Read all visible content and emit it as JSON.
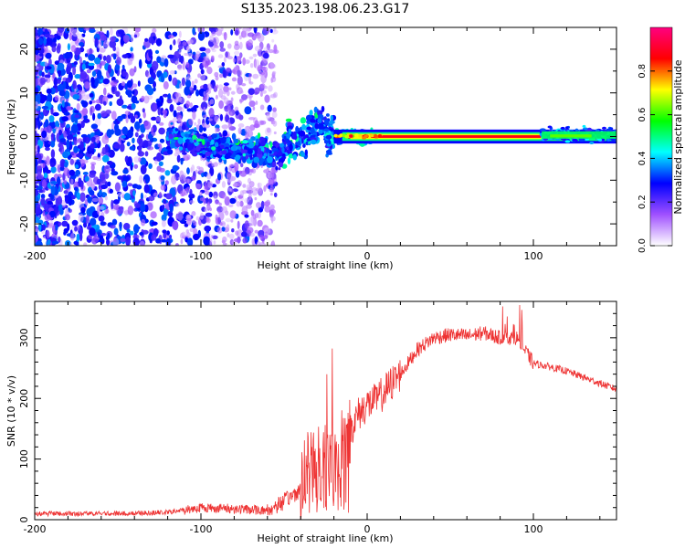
{
  "title": "S135.2023.198.06.23.G17",
  "chart_data": [
    {
      "type": "heatmap",
      "xlabel": "Height of straight line (km)",
      "ylabel": "Frequency (Hz)",
      "xlim": [
        -200,
        150
      ],
      "ylim": [
        -25,
        25
      ],
      "x_ticks": [
        -200,
        -100,
        0,
        100
      ],
      "x_tick_labels": [
        "-200",
        "-100",
        "0",
        "100"
      ],
      "y_ticks": [
        -20,
        -10,
        0,
        10,
        20
      ],
      "y_tick_labels": [
        "-20",
        "-10",
        "0",
        "10",
        "20"
      ],
      "colorbar": {
        "label": "Normalized spectral amplitude",
        "range": [
          0,
          1
        ],
        "ticks": [
          0.0,
          0.2,
          0.4,
          0.6,
          0.8
        ],
        "tick_labels": [
          "0.0",
          "0.2",
          "0.4",
          "0.6",
          "0.8"
        ],
        "colors": [
          "#ffffff",
          "#a050ff",
          "#0000ff",
          "#00ffff",
          "#00ff00",
          "#ffff00",
          "#ff0000",
          "#ff0080"
        ]
      },
      "features": [
        {
          "name": "scattered low-amplitude noise",
          "x_range": [
            -200,
            -60
          ],
          "freq_range": [
            -25,
            25
          ],
          "amplitude": 0.15
        },
        {
          "name": "broadening spectral band",
          "x_range": [
            -120,
            -20
          ],
          "freq_range": [
            -12,
            8
          ],
          "amplitude": 0.35
        },
        {
          "name": "narrow carrier line",
          "x_range": [
            -20,
            105
          ],
          "freq_center": 0,
          "amplitude": 0.9
        },
        {
          "name": "widening carrier line",
          "x_range": [
            105,
            150
          ],
          "freq_center": 0.5,
          "amplitude": 0.55
        }
      ]
    },
    {
      "type": "line",
      "xlabel": "Height of straight line (km)",
      "ylabel": "SNR (10 * v/v)",
      "xlim": [
        -200,
        150
      ],
      "ylim": [
        0,
        360
      ],
      "x_ticks": [
        -200,
        -100,
        0,
        100
      ],
      "x_tick_labels": [
        "-200",
        "-100",
        "0",
        "100"
      ],
      "y_ticks": [
        0,
        100,
        200,
        300
      ],
      "y_tick_labels": [
        "0",
        "100",
        "200",
        "300"
      ],
      "series": [
        {
          "name": "SNR",
          "color": "#ee3333",
          "x": [
            -200,
            -150,
            -120,
            -100,
            -80,
            -60,
            -50,
            -40,
            -35,
            -30,
            -25,
            -20,
            -15,
            -10,
            -5,
            0,
            5,
            10,
            20,
            30,
            40,
            50,
            60,
            70,
            80,
            90,
            100,
            110,
            120,
            130,
            140,
            150
          ],
          "values": [
            10,
            10,
            12,
            20,
            18,
            15,
            30,
            50,
            110,
            90,
            130,
            90,
            130,
            150,
            175,
            190,
            195,
            210,
            240,
            280,
            300,
            305,
            303,
            308,
            300,
            300,
            258,
            252,
            245,
            235,
            225,
            215
          ]
        }
      ]
    }
  ]
}
